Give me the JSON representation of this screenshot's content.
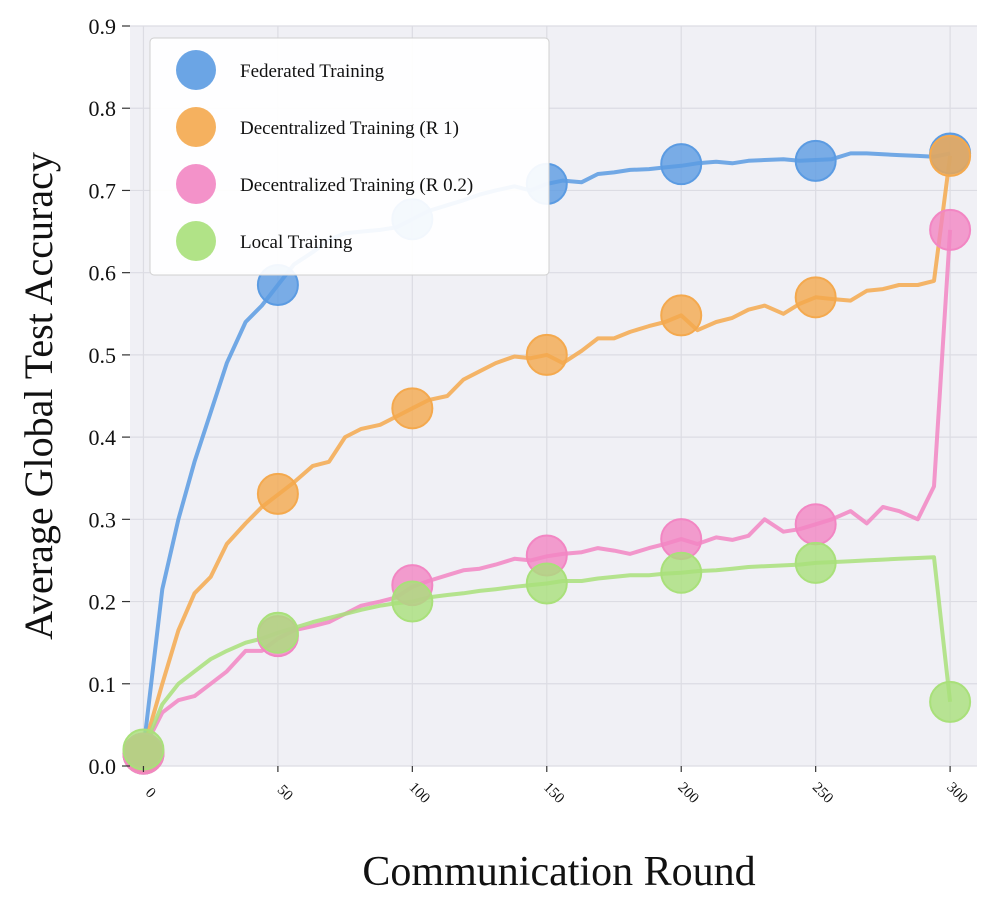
{
  "chart_data": {
    "type": "line",
    "title": "",
    "xlabel": "Communication Round",
    "ylabel": "Average Global Test Accuracy",
    "xlim": [
      -5,
      310
    ],
    "ylim": [
      0,
      0.9
    ],
    "xticks": [
      0,
      50,
      100,
      150,
      200,
      250,
      300
    ],
    "yticks": [
      0.0,
      0.1,
      0.2,
      0.3,
      0.4,
      0.5,
      0.6,
      0.7,
      0.8,
      0.9
    ],
    "xtick_labels": [
      "0",
      "50",
      "100",
      "150",
      "200",
      "250",
      "300"
    ],
    "ytick_labels": [
      "0.0",
      "0.1",
      "0.2",
      "0.3",
      "0.4",
      "0.5",
      "0.6",
      "0.7",
      "0.8",
      "0.9"
    ],
    "grid": true,
    "legend_position": "top-left",
    "marker_x": [
      0,
      50,
      100,
      150,
      200,
      250,
      300
    ],
    "series": [
      {
        "name": "Federated Training",
        "color": "#5b9be2",
        "x": [
          0,
          7,
          13,
          19,
          25,
          31,
          38,
          44,
          50,
          56,
          63,
          69,
          75,
          81,
          88,
          94,
          100,
          106,
          113,
          119,
          125,
          131,
          138,
          144,
          150,
          156,
          163,
          169,
          175,
          181,
          188,
          194,
          200,
          206,
          213,
          219,
          225,
          231,
          238,
          244,
          250,
          256,
          263,
          269,
          275,
          281,
          288,
          294,
          300
        ],
        "y": [
          0.02,
          0.215,
          0.3,
          0.37,
          0.43,
          0.49,
          0.54,
          0.56,
          0.585,
          0.61,
          0.625,
          0.64,
          0.648,
          0.65,
          0.652,
          0.655,
          0.665,
          0.675,
          0.682,
          0.688,
          0.695,
          0.7,
          0.705,
          0.7,
          0.708,
          0.712,
          0.71,
          0.72,
          0.722,
          0.725,
          0.726,
          0.728,
          0.73,
          0.733,
          0.735,
          0.733,
          0.736,
          0.737,
          0.738,
          0.736,
          0.737,
          0.738,
          0.745,
          0.745,
          0.744,
          0.743,
          0.742,
          0.741,
          0.745
        ],
        "markers": [
          0.015,
          0.585,
          0.665,
          0.708,
          0.732,
          0.736,
          0.745
        ]
      },
      {
        "name": "Decentralized Training (R 1)",
        "color": "#f4a94e",
        "x": [
          0,
          7,
          13,
          19,
          25,
          31,
          38,
          44,
          50,
          56,
          63,
          69,
          75,
          81,
          88,
          94,
          100,
          106,
          113,
          119,
          125,
          131,
          138,
          144,
          150,
          156,
          163,
          169,
          175,
          181,
          188,
          194,
          200,
          206,
          213,
          219,
          225,
          231,
          238,
          244,
          250,
          256,
          263,
          269,
          275,
          281,
          288,
          294,
          300
        ],
        "y": [
          0.02,
          0.1,
          0.165,
          0.21,
          0.23,
          0.27,
          0.295,
          0.315,
          0.33,
          0.345,
          0.365,
          0.37,
          0.4,
          0.41,
          0.415,
          0.425,
          0.435,
          0.445,
          0.45,
          0.47,
          0.48,
          0.49,
          0.498,
          0.496,
          0.5,
          0.49,
          0.505,
          0.52,
          0.52,
          0.528,
          0.535,
          0.54,
          0.548,
          0.53,
          0.54,
          0.545,
          0.555,
          0.56,
          0.55,
          0.562,
          0.57,
          0.568,
          0.566,
          0.578,
          0.58,
          0.585,
          0.585,
          0.59,
          0.742
        ],
        "markers": [
          0.015,
          0.331,
          0.435,
          0.5,
          0.548,
          0.57,
          0.742
        ]
      },
      {
        "name": "Decentralized Training (R 0.2)",
        "color": "#f286c3",
        "x": [
          0,
          7,
          13,
          19,
          25,
          31,
          38,
          44,
          50,
          56,
          63,
          69,
          75,
          81,
          88,
          94,
          100,
          106,
          113,
          119,
          125,
          131,
          138,
          144,
          150,
          156,
          163,
          169,
          175,
          181,
          188,
          194,
          200,
          206,
          213,
          219,
          225,
          231,
          238,
          244,
          250,
          256,
          263,
          269,
          275,
          281,
          288,
          294,
          300
        ],
        "y": [
          0.02,
          0.065,
          0.08,
          0.085,
          0.1,
          0.115,
          0.14,
          0.14,
          0.155,
          0.165,
          0.17,
          0.175,
          0.185,
          0.195,
          0.2,
          0.205,
          0.218,
          0.225,
          0.232,
          0.238,
          0.24,
          0.245,
          0.252,
          0.25,
          0.255,
          0.258,
          0.26,
          0.265,
          0.262,
          0.258,
          0.265,
          0.27,
          0.276,
          0.27,
          0.278,
          0.275,
          0.28,
          0.3,
          0.285,
          0.288,
          0.294,
          0.3,
          0.31,
          0.295,
          0.315,
          0.31,
          0.3,
          0.34,
          0.652
        ],
        "markers": [
          0.015,
          0.158,
          0.22,
          0.256,
          0.276,
          0.294,
          0.652
        ]
      },
      {
        "name": "Local Training",
        "color": "#a9e07a",
        "x": [
          0,
          7,
          13,
          19,
          25,
          31,
          38,
          44,
          50,
          56,
          63,
          69,
          75,
          81,
          88,
          94,
          100,
          106,
          113,
          119,
          125,
          131,
          138,
          144,
          150,
          156,
          163,
          169,
          175,
          181,
          188,
          194,
          200,
          206,
          213,
          219,
          225,
          231,
          238,
          244,
          250,
          256,
          263,
          269,
          275,
          281,
          288,
          294,
          300
        ],
        "y": [
          0.02,
          0.075,
          0.1,
          0.115,
          0.13,
          0.14,
          0.15,
          0.155,
          0.162,
          0.168,
          0.175,
          0.18,
          0.185,
          0.19,
          0.195,
          0.198,
          0.2,
          0.205,
          0.208,
          0.21,
          0.213,
          0.215,
          0.218,
          0.22,
          0.222,
          0.225,
          0.225,
          0.228,
          0.23,
          0.232,
          0.232,
          0.234,
          0.235,
          0.237,
          0.238,
          0.24,
          0.242,
          0.243,
          0.244,
          0.245,
          0.247,
          0.248,
          0.249,
          0.25,
          0.251,
          0.252,
          0.253,
          0.254,
          0.078
        ],
        "markers": [
          0.02,
          0.162,
          0.2,
          0.222,
          0.235,
          0.247,
          0.078
        ]
      }
    ]
  }
}
